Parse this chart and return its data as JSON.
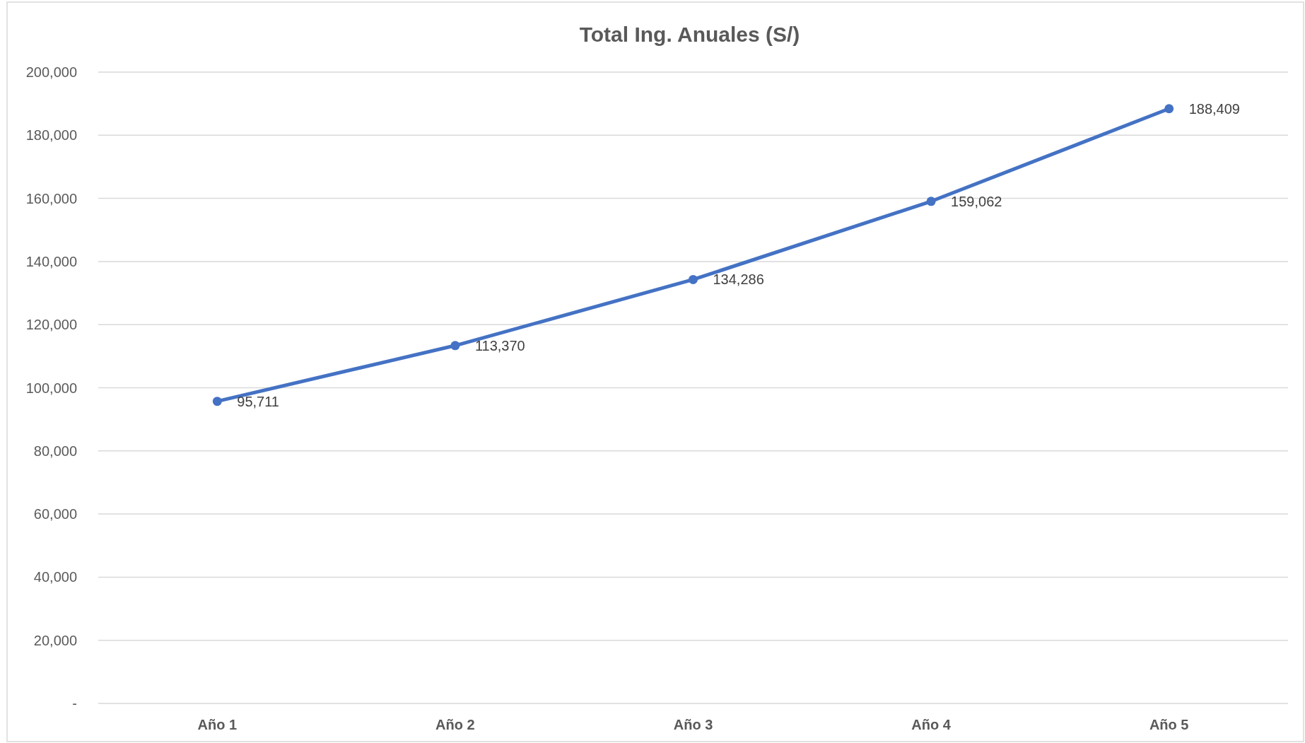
{
  "chart_data": {
    "type": "line",
    "title": "Total Ing. Anuales (S/)",
    "categories": [
      "Año 1",
      "Año 2",
      "Año 3",
      "Año 4",
      "Año 5"
    ],
    "series": [
      {
        "color": "#4472c4",
        "values": [
          95711,
          113370,
          134286,
          159062,
          188409
        ],
        "value_labels": [
          "95,711",
          "113,370",
          "134,286",
          "159,062",
          "188,409"
        ]
      }
    ],
    "ylim": [
      0,
      200000
    ],
    "yticks": [
      {
        "value": 0,
        "label": "-"
      },
      {
        "value": 20000,
        "label": "20,000"
      },
      {
        "value": 40000,
        "label": "40,000"
      },
      {
        "value": 60000,
        "label": "60,000"
      },
      {
        "value": 80000,
        "label": "80,000"
      },
      {
        "value": 100000,
        "label": "100,000"
      },
      {
        "value": 120000,
        "label": "120,000"
      },
      {
        "value": 140000,
        "label": "140,000"
      },
      {
        "value": 160000,
        "label": "160,000"
      },
      {
        "value": 180000,
        "label": "180,000"
      },
      {
        "value": 200000,
        "label": "200,000"
      }
    ],
    "grid": "y",
    "marker": "circle",
    "line_style": "solid"
  }
}
